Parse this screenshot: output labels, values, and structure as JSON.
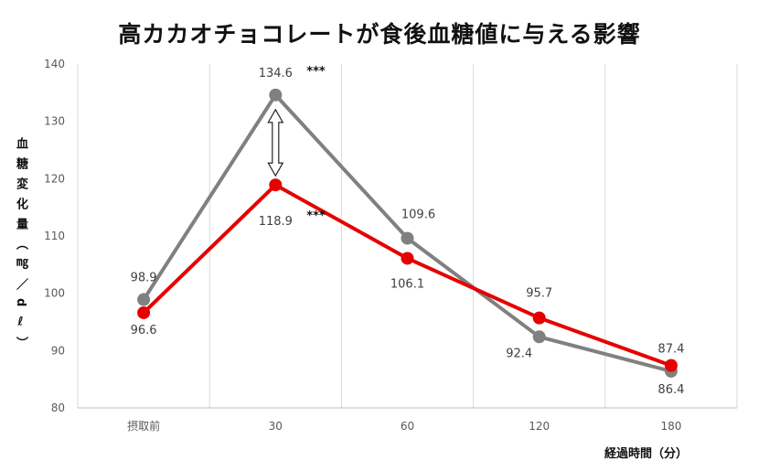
{
  "chart_data": {
    "type": "line",
    "title": "高カカオチョコレートが食後血糖値に与える影響",
    "xlabel": "経過時間（分）",
    "ylabel": "血糖変化量（㎎／dℓ）",
    "categories": [
      "摂取前",
      "30",
      "60",
      "120",
      "180"
    ],
    "ylim": [
      80,
      140
    ],
    "yticks": [
      80,
      90,
      100,
      110,
      120,
      130,
      140
    ],
    "grid": "vertical",
    "series": [
      {
        "name": "",
        "color": "#808080",
        "values": [
          98.9,
          134.6,
          109.6,
          92.4,
          86.4
        ],
        "labels": [
          "98.9",
          "134.6",
          "109.6",
          "92.4",
          "86.4"
        ]
      },
      {
        "name": "",
        "color": "#e60000",
        "values": [
          96.6,
          118.9,
          106.1,
          95.7,
          87.4
        ],
        "labels": [
          "96.6",
          "118.9",
          "106.1",
          "95.7",
          "87.4"
        ]
      }
    ],
    "annotations": [
      {
        "category": "30",
        "series": 0,
        "text": "***"
      },
      {
        "category": "30",
        "series": 1,
        "text": "***"
      }
    ]
  }
}
